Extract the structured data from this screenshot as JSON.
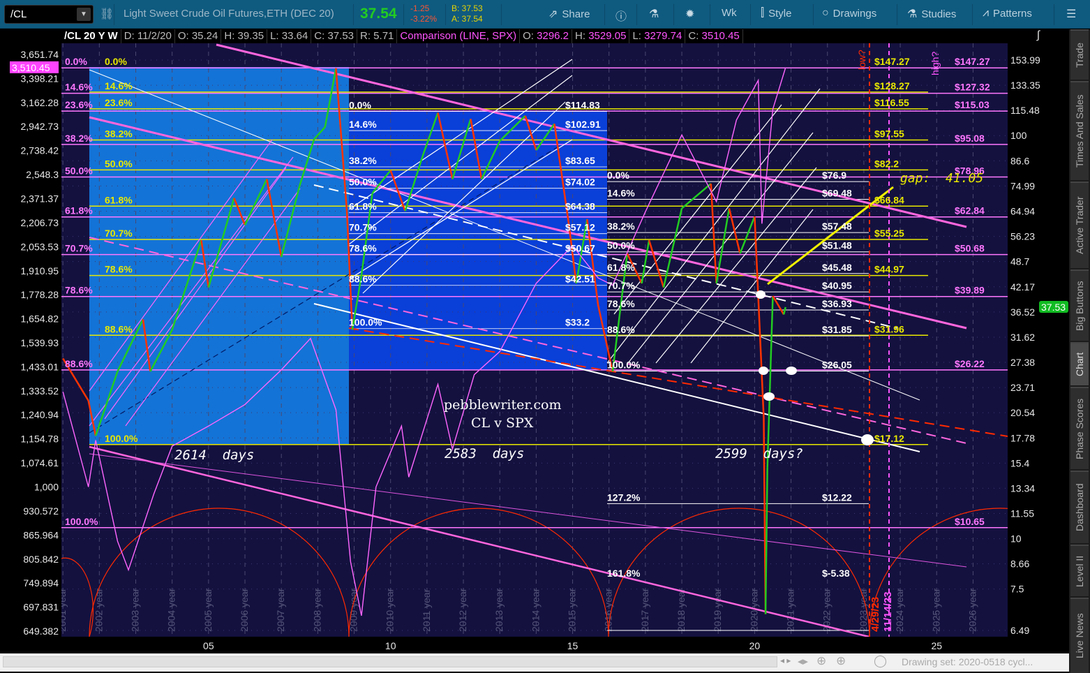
{
  "toolbar": {
    "symbol": "/CL",
    "instrument_name": "Light Sweet Crude Oil Futures,ETH (DEC 20)",
    "last_price": "37.54",
    "net_change": "-1.25",
    "pct_change": "-3.22%",
    "bid": "B: 37.53",
    "ask": "A: 37.54",
    "buttons": [
      {
        "label": "Share",
        "icon": "share-icon"
      },
      {
        "label": "",
        "icon": "info-icon"
      },
      {
        "label": "",
        "icon": "flask-icon"
      },
      {
        "label": "",
        "icon": "gear-icon"
      },
      {
        "label": "Wk",
        "icon": ""
      },
      {
        "label": "Style",
        "icon": "candlestick-icon"
      },
      {
        "label": "Drawings",
        "icon": "circle-icon"
      },
      {
        "label": "Studies",
        "icon": "flask-icon"
      },
      {
        "label": "Patterns",
        "icon": "pattern-icon"
      },
      {
        "label": "",
        "icon": "menu-icon"
      }
    ]
  },
  "infobar": {
    "title": "/CL 20 Y W",
    "fields": [
      "D: 11/2/20",
      "O: 35.24",
      "H: 39.35",
      "L: 33.64",
      "C: 37.53",
      "R: 5.71"
    ],
    "comparison": "Comparison (LINE, SPX)",
    "comparison_fields": [
      {
        "label": "O:",
        "value": "3296.2"
      },
      {
        "label": "H:",
        "value": "3529.05"
      },
      {
        "label": "L:",
        "value": "3279.74"
      },
      {
        "label": "C:",
        "value": "3510.45"
      }
    ]
  },
  "side_tabs": [
    "Trade",
    "Times And Sales",
    "Active Trader",
    "Big Buttons",
    "Chart",
    "Phase Scores",
    "Dashboard",
    "Level II",
    "Live News"
  ],
  "active_tab": "Chart",
  "status": {
    "drawing_set": "Drawing set: 2020-0518 cycl..."
  },
  "colors": {
    "background": "#14113f",
    "cl_up": "#22cc22",
    "cl_down": "#ff3300",
    "spx": "#ff66ff",
    "fib_yellow": "#e8e800",
    "fib_pink": "#ff77ff",
    "fib_white": "#ffffff",
    "region_light_blue": "#1473d6",
    "region_dark_blue": "#0a3fd8"
  },
  "chart_data": {
    "type": "line",
    "title": "/CL 20 Y W",
    "series": [
      {
        "name": "/CL",
        "axis": "right",
        "points": [
          [
            2001.0,
            28
          ],
          [
            2001.7,
            22
          ],
          [
            2001.9,
            18
          ],
          [
            2002.5,
            26
          ],
          [
            2003.2,
            35
          ],
          [
            2003.4,
            26
          ],
          [
            2004.0,
            33
          ],
          [
            2004.8,
            55
          ],
          [
            2005.0,
            42
          ],
          [
            2005.7,
            70
          ],
          [
            2006.0,
            60
          ],
          [
            2006.6,
            78
          ],
          [
            2007.0,
            50
          ],
          [
            2007.5,
            75
          ],
          [
            2007.9,
            98
          ],
          [
            2008.2,
            105
          ],
          [
            2008.5,
            147
          ],
          [
            2008.8,
            65
          ],
          [
            2008.95,
            33
          ],
          [
            2009.2,
            45
          ],
          [
            2009.5,
            72
          ],
          [
            2010.0,
            82
          ],
          [
            2010.4,
            65
          ],
          [
            2010.9,
            90
          ],
          [
            2011.3,
            114
          ],
          [
            2011.7,
            78
          ],
          [
            2012.2,
            110
          ],
          [
            2012.5,
            78
          ],
          [
            2013.0,
            97
          ],
          [
            2013.7,
            112
          ],
          [
            2014.0,
            92
          ],
          [
            2014.5,
            107
          ],
          [
            2014.9,
            60
          ],
          [
            2015.1,
            43
          ],
          [
            2015.4,
            62
          ],
          [
            2015.7,
            38
          ],
          [
            2016.1,
            26
          ],
          [
            2016.5,
            51
          ],
          [
            2016.9,
            43
          ],
          [
            2017.1,
            55
          ],
          [
            2017.5,
            42
          ],
          [
            2018.0,
            66
          ],
          [
            2018.8,
            76
          ],
          [
            2018.95,
            43
          ],
          [
            2019.3,
            66
          ],
          [
            2019.6,
            51
          ],
          [
            2020.0,
            63
          ],
          [
            2020.25,
            20
          ],
          [
            2020.3,
            6.5
          ],
          [
            2020.35,
            15
          ],
          [
            2020.5,
            40
          ],
          [
            2020.8,
            36
          ],
          [
            2020.85,
            37.53
          ]
        ]
      },
      {
        "name": "SPX",
        "axis": "left",
        "points": [
          [
            2001.0,
            1330
          ],
          [
            2001.7,
            1000
          ],
          [
            2001.9,
            1150
          ],
          [
            2002.5,
            850
          ],
          [
            2002.8,
            780
          ],
          [
            2003.5,
            980
          ],
          [
            2004.0,
            1130
          ],
          [
            2005.0,
            1200
          ],
          [
            2006.0,
            1280
          ],
          [
            2007.0,
            1420
          ],
          [
            2007.8,
            1560
          ],
          [
            2008.5,
            1260
          ],
          [
            2008.9,
            800
          ],
          [
            2009.2,
            680
          ],
          [
            2009.6,
            1000
          ],
          [
            2010.3,
            1200
          ],
          [
            2010.5,
            1030
          ],
          [
            2011.3,
            1360
          ],
          [
            2011.7,
            1120
          ],
          [
            2012.3,
            1400
          ],
          [
            2013.0,
            1500
          ],
          [
            2014.0,
            1840
          ],
          [
            2015.0,
            2060
          ],
          [
            2015.7,
            1870
          ],
          [
            2016.1,
            1830
          ],
          [
            2017.0,
            2280
          ],
          [
            2018.0,
            2870
          ],
          [
            2018.95,
            2350
          ],
          [
            2019.5,
            3000
          ],
          [
            2020.1,
            3380
          ],
          [
            2020.2,
            2200
          ],
          [
            2020.5,
            3100
          ],
          [
            2020.85,
            3510.45
          ]
        ]
      }
    ],
    "left_axis": {
      "scale": "log",
      "ticks": [
        "3,651.74",
        "3,398.21",
        "3,162.28",
        "2,942.73",
        "2,738.42",
        "2,548.3",
        "2,371.37",
        "2,206.73",
        "2,053.53",
        "1,910.95",
        "1,778.28",
        "1,654.82",
        "1,539.93",
        "1,433.01",
        "1,333.52",
        "1,240.94",
        "1,154.78",
        "1,074.61",
        "1,000",
        "930.572",
        "865.964",
        "805.842",
        "749.894",
        "697.831",
        "649.382"
      ],
      "range": [
        649.382,
        3651.74
      ],
      "current": "3,510.45"
    },
    "right_axis": {
      "scale": "log",
      "ticks": [
        "153.99",
        "133.35",
        "115.48",
        "100",
        "86.6",
        "74.99",
        "64.94",
        "56.23",
        "48.7",
        "42.17",
        "36.52",
        "31.62",
        "27.38",
        "23.71",
        "20.54",
        "17.78",
        "15.4",
        "13.34",
        "11.55",
        "10",
        "8.66",
        "7.5",
        "6.49"
      ],
      "range": [
        6.49,
        153.99
      ],
      "current": "37.53"
    },
    "x_axis": {
      "ticks": [
        "05",
        "10",
        "15",
        "20",
        "25"
      ],
      "tick_years": [
        2005,
        2010,
        2015,
        2020,
        2025
      ],
      "range": [
        2000.96,
        2026.95
      ],
      "year_labels": [
        "2001 year",
        "2002 year",
        "2003 year",
        "2004 year",
        "2005 year",
        "2006 year",
        "2007 year",
        "2008 year",
        "2009 year",
        "2010 year",
        "2011 year",
        "2012 year",
        "2013 year",
        "2014 year",
        "2015 year",
        "2016 year",
        "2017 year",
        "2018 year",
        "2019 year",
        "2020 year",
        "2021 year",
        "2022 year",
        "2023 year",
        "2024 year",
        "2025 year",
        "2026 year"
      ]
    },
    "grid": true,
    "fib_yellow": [
      [
        "0.0%",
        "$147.27",
        147.27
      ],
      [
        "14.6%",
        "$128.27",
        128.27
      ],
      [
        "23.6%",
        "$116.55",
        116.55
      ],
      [
        "38.2%",
        "$97.55",
        97.55
      ],
      [
        "50.0%",
        "$82.2",
        82.2
      ],
      [
        "61.8%",
        "$66.84",
        66.84
      ],
      [
        "70.7%",
        "$55.25",
        55.25
      ],
      [
        "78.6%",
        "$44.97",
        44.97
      ],
      [
        "88.6%",
        "$31.96",
        31.96
      ],
      [
        "100.0%",
        "$17.12",
        17.12
      ]
    ],
    "fib_pink": [
      [
        "0.0%",
        "$147.27",
        147.27
      ],
      [
        "14.6%",
        "$127.32",
        127.32
      ],
      [
        "23.6%",
        "$115.03",
        115.03
      ],
      [
        "38.2%",
        "$95.08",
        95.08
      ],
      [
        "50.0%",
        "$78.96",
        78.96
      ],
      [
        "61.8%",
        "$62.84",
        62.84
      ],
      [
        "70.7%",
        "$50.68",
        50.68
      ],
      [
        "78.6%",
        "$39.89",
        39.89
      ],
      [
        "88.6%",
        "$26.22",
        26.22
      ],
      [
        "100.0%",
        "$10.65",
        10.65
      ]
    ],
    "fib_white_mid": [
      [
        "0.0%",
        "$114.83",
        114.83
      ],
      [
        "14.6%",
        "$102.91",
        102.91
      ],
      [
        "38.2%",
        "$83.65",
        83.65
      ],
      [
        "50.0%",
        "$74.02",
        74.02
      ],
      [
        "61.8%",
        "$64.38",
        64.38
      ],
      [
        "70.7%",
        "$57.12",
        57.12
      ],
      [
        "78.6%",
        "$50.67",
        50.67
      ],
      [
        "88.6%",
        "$42.51",
        42.51
      ],
      [
        "100.0%",
        "$33.2",
        33.2
      ]
    ],
    "fib_white_right": [
      [
        "0.0%",
        "$76.9",
        76.9
      ],
      [
        "14.6%",
        "$69.48",
        69.48
      ],
      [
        "38.2%",
        "$57.48",
        57.48
      ],
      [
        "50.0%",
        "$51.48",
        51.48
      ],
      [
        "61.8%",
        "$45.48",
        45.48
      ],
      [
        "70.7%",
        "$40.95",
        40.95
      ],
      [
        "78.6%",
        "$36.93",
        36.93
      ],
      [
        "88.6%",
        "$31.85",
        31.85
      ],
      [
        "100.0%",
        "$26.05",
        26.05
      ],
      [
        "127.2%",
        "$12.22",
        12.22
      ],
      [
        "161.8%",
        "$-5.38",
        -5.38
      ]
    ],
    "annotations": {
      "gap": "gap:  41.05",
      "watermark": "pebblewriter.com",
      "subtitle": "CL v SPX",
      "cycle1": "2614  days",
      "cycle2": "2583  days",
      "cycle3": "2599  days?",
      "low_q": "low?",
      "high_q": "high?",
      "low_date": "4/29/23",
      "high_date": "11/14/23"
    }
  }
}
